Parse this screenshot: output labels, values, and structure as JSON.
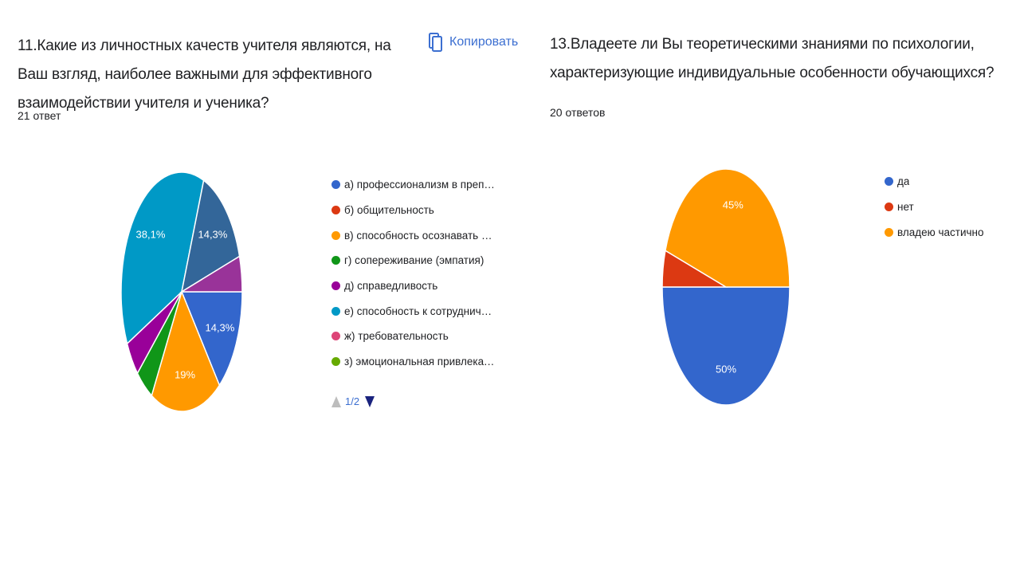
{
  "left": {
    "question": "11.Какие из личностных качеств учителя являются, на Ваш взгляд, наиболее важными для эффективного взаимодействии учителя и ученика?",
    "response_count": "21 ответ",
    "copy_label": "Копировать",
    "pager": {
      "text": "1/2"
    }
  },
  "right": {
    "question": "13.Владеете ли Вы теоретическими знаниями по психологии, характеризующие индивидуальные особенности обучающихся?",
    "response_count": "20 ответов"
  },
  "icons": {
    "copy": "copy-icon",
    "pager_prev": "triangle-up-icon",
    "pager_next": "triangle-down-icon"
  },
  "chart_data": [
    {
      "type": "pie",
      "start": "3 o'clock, clockwise",
      "legend_position": "right",
      "categories": [
        "а) профессионализм в преподавани...",
        "б) общительность",
        "в) способность осознавать свои дей...",
        "г) сопереживание (эмпатия)",
        "д) справедливость",
        "е) способность к сотрудничеству",
        "ж) требовательность",
        "з) эмоциональная привлекательность"
      ],
      "slices": [
        {
          "category": "а) профессионализм в преподавани...",
          "value": 14.3,
          "label": "14,3%",
          "color": "#3366cc"
        },
        {
          "category": "в) способность осознавать свои дей...",
          "value": 19.0,
          "label": "19%",
          "color": "#ff9900"
        },
        {
          "category": "г) сопереживание (эмпатия)",
          "value": 4.8,
          "label": "",
          "color": "#109618"
        },
        {
          "category": "д) справедливость",
          "value": 4.8,
          "label": "",
          "color": "#990099"
        },
        {
          "category": "е) способность к сотрудничеству",
          "value": 38.1,
          "label": "38,1%",
          "color": "#0099c6"
        },
        {
          "category": "unlabeled slice",
          "value": 14.3,
          "label": "14,3%",
          "color": "#336699"
        },
        {
          "category": "unlabeled slice",
          "value": 4.8,
          "label": "",
          "color": "#993399"
        }
      ],
      "legend": [
        {
          "label": "а) профессионализм в преподавани...",
          "color": "#3366cc"
        },
        {
          "label": "б) общительность",
          "color": "#dc3912"
        },
        {
          "label": "в) способность осознавать свои дей...",
          "color": "#ff9900"
        },
        {
          "label": "г) сопереживание (эмпатия)",
          "color": "#109618"
        },
        {
          "label": "д) справедливость",
          "color": "#990099"
        },
        {
          "label": "е) способность к сотрудничеству",
          "color": "#0099c6"
        },
        {
          "label": "ж) требовательность",
          "color": "#dd4477"
        },
        {
          "label": "з) эмоциональная привлекательность",
          "color": "#66aa00"
        }
      ]
    },
    {
      "type": "pie",
      "start": "3 o'clock, clockwise",
      "legend_position": "right",
      "categories": [
        "да",
        "нет",
        "владею частично"
      ],
      "slices": [
        {
          "category": "да",
          "value": 50,
          "label": "50%",
          "color": "#3366cc"
        },
        {
          "category": "нет",
          "value": 5,
          "label": "",
          "color": "#dc3912"
        },
        {
          "category": "владею частично",
          "value": 45,
          "label": "45%",
          "color": "#ff9900"
        }
      ],
      "legend": [
        {
          "label": "да",
          "color": "#3366cc"
        },
        {
          "label": "нет",
          "color": "#dc3912"
        },
        {
          "label": "владею частично",
          "color": "#ff9900"
        }
      ]
    }
  ]
}
